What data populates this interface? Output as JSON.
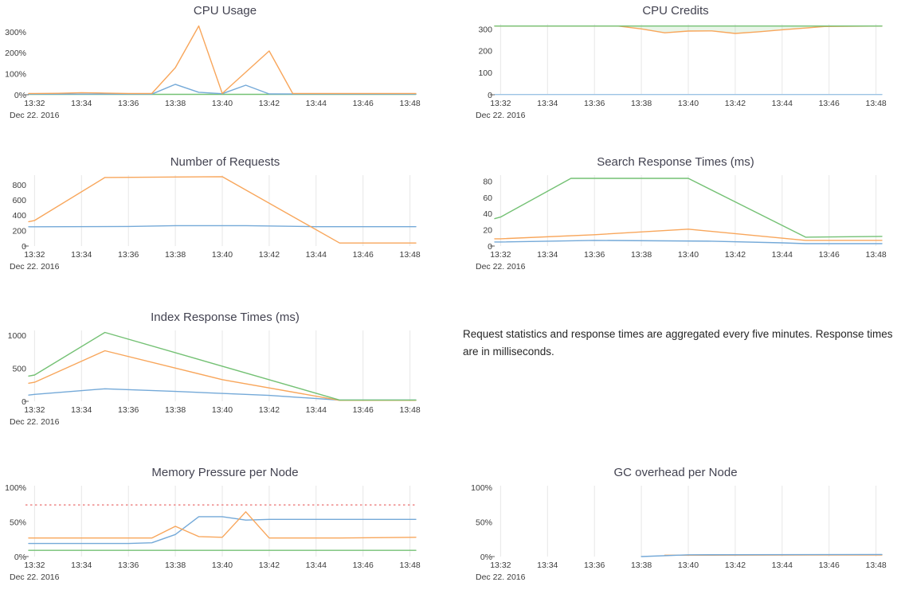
{
  "layout": {
    "background": "#ffffff",
    "grid_color": "#e7e7e7",
    "tick_color": "#3c3c3c",
    "title_color": "#434351",
    "date_label": "Dec 22. 2016",
    "x_ticks": [
      {
        "v": 0,
        "label": "13:32"
      },
      {
        "v": 2,
        "label": "13:34"
      },
      {
        "v": 4,
        "label": "13:36"
      },
      {
        "v": 6,
        "label": "13:38"
      },
      {
        "v": 8,
        "label": "13:40"
      },
      {
        "v": 10,
        "label": "13:42"
      },
      {
        "v": 12,
        "label": "13:44"
      },
      {
        "v": 14,
        "label": "13:46"
      },
      {
        "v": 16,
        "label": "13:48"
      }
    ]
  },
  "note": {
    "text": "Request statistics and response times are aggregated every five minutes. Response times are in milliseconds."
  },
  "chart_data": [
    {
      "type": "line",
      "title": "CPU Usage",
      "ylim": 340,
      "grid": false,
      "y_ticks": [
        {
          "v": 0,
          "label": "0%"
        },
        {
          "v": 100,
          "label": "100%"
        },
        {
          "v": 200,
          "label": "200%"
        },
        {
          "v": 300,
          "label": "300%"
        }
      ],
      "series": [
        {
          "name": "green",
          "color": "#74c174",
          "x": [
            -0.25,
            16.25
          ],
          "y": [
            2,
            2
          ]
        },
        {
          "name": "blue",
          "color": "#74a9d8",
          "x": [
            -0.25,
            5,
            6,
            7,
            8,
            9,
            10,
            16.25
          ],
          "y": [
            3,
            3,
            50,
            12,
            5,
            46,
            4,
            3
          ]
        },
        {
          "name": "orange",
          "color": "#f8a65b",
          "x": [
            -0.25,
            0,
            1,
            2,
            3,
            4,
            5,
            6,
            7,
            8,
            10,
            11,
            16.25
          ],
          "y": [
            6,
            6,
            7,
            10,
            8,
            6,
            6,
            130,
            330,
            6,
            210,
            6,
            6
          ]
        }
      ]
    },
    {
      "type": "line",
      "title": "CPU Credits",
      "ylim": 325,
      "grid": true,
      "y_ticks": [
        {
          "v": 0,
          "label": "0"
        },
        {
          "v": 100,
          "label": "100"
        },
        {
          "v": 200,
          "label": "200"
        },
        {
          "v": 300,
          "label": "300"
        }
      ],
      "series": [
        {
          "name": "orange",
          "color": "#f8a65b",
          "fill_to_y": 315,
          "fill": "rgba(116,193,116,0.16)",
          "x": [
            -0.25,
            5,
            6,
            7,
            8,
            9,
            10,
            11,
            12,
            13,
            13.8,
            16.25
          ],
          "y": [
            315,
            315,
            302,
            284,
            292,
            293,
            281,
            289,
            298,
            306,
            313,
            315
          ]
        },
        {
          "name": "blue",
          "color": "#9cc3e4",
          "x": [
            -0.25,
            16.25
          ],
          "y": [
            1,
            1
          ]
        },
        {
          "name": "green",
          "color": "#74c174",
          "x": [
            -0.25,
            16.25
          ],
          "y": [
            315,
            315
          ]
        }
      ]
    },
    {
      "type": "line",
      "title": "Number of Requests",
      "ylim": 930,
      "grid": true,
      "y_ticks": [
        {
          "v": 0,
          "label": "0"
        },
        {
          "v": 200,
          "label": "200"
        },
        {
          "v": 400,
          "label": "400"
        },
        {
          "v": 600,
          "label": "600"
        },
        {
          "v": 800,
          "label": "800"
        }
      ],
      "series": [
        {
          "name": "blue",
          "color": "#74a9d8",
          "x": [
            -0.25,
            0,
            4,
            6,
            9,
            12,
            16.25
          ],
          "y": [
            253,
            253,
            257,
            267,
            267,
            254,
            254
          ]
        },
        {
          "name": "orange",
          "color": "#f8a65b",
          "x": [
            -0.25,
            0,
            3,
            8,
            13,
            16.25
          ],
          "y": [
            320,
            335,
            900,
            910,
            40,
            40
          ]
        }
      ]
    },
    {
      "type": "line",
      "title": "Search Response Times (ms)",
      "ylim": 88,
      "grid": true,
      "y_ticks": [
        {
          "v": 0,
          "label": "0"
        },
        {
          "v": 20,
          "label": "20"
        },
        {
          "v": 40,
          "label": "40"
        },
        {
          "v": 60,
          "label": "60"
        },
        {
          "v": 80,
          "label": "80"
        }
      ],
      "series": [
        {
          "name": "blue",
          "color": "#74a9d8",
          "x": [
            -0.25,
            0,
            4,
            9,
            12,
            13,
            16.25
          ],
          "y": [
            5,
            5,
            7,
            6,
            4,
            3,
            3
          ]
        },
        {
          "name": "orange",
          "color": "#f8a65b",
          "x": [
            -0.25,
            0,
            4,
            8,
            13,
            16.25
          ],
          "y": [
            9,
            9,
            14,
            21,
            7,
            7
          ]
        },
        {
          "name": "green",
          "color": "#74c174",
          "x": [
            -0.25,
            0,
            3,
            8,
            13,
            16.25
          ],
          "y": [
            34,
            36,
            84,
            84,
            11,
            12
          ]
        }
      ]
    },
    {
      "type": "line",
      "title": "Index Response Times (ms)",
      "ylim": 1080,
      "grid": true,
      "y_ticks": [
        {
          "v": 0,
          "label": "0"
        },
        {
          "v": 500,
          "label": "500"
        },
        {
          "v": 1000,
          "label": "1000"
        }
      ],
      "series": [
        {
          "name": "blue",
          "color": "#74a9d8",
          "x": [
            -0.25,
            0,
            3,
            6,
            10,
            13,
            16.25
          ],
          "y": [
            95,
            105,
            190,
            150,
            90,
            18,
            18
          ]
        },
        {
          "name": "orange",
          "color": "#f8a65b",
          "x": [
            -0.25,
            0,
            3,
            8,
            13,
            16.25
          ],
          "y": [
            275,
            290,
            770,
            330,
            15,
            15
          ]
        },
        {
          "name": "green",
          "color": "#74c174",
          "x": [
            -0.25,
            0,
            3,
            13,
            16.25
          ],
          "y": [
            385,
            400,
            1050,
            20,
            20
          ]
        }
      ]
    },
    {
      "type": "line",
      "title": "Memory Pressure per Node",
      "ylim": 103,
      "grid": true,
      "threshold": {
        "y": 75,
        "color": "#ef8f8f"
      },
      "y_ticks": [
        {
          "v": 0,
          "label": "0%"
        },
        {
          "v": 50,
          "label": "50%"
        },
        {
          "v": 100,
          "label": "100%"
        }
      ],
      "series": [
        {
          "name": "green",
          "color": "#74c174",
          "x": [
            -0.25,
            16.25
          ],
          "y": [
            9,
            9
          ]
        },
        {
          "name": "blue",
          "color": "#74a9d8",
          "x": [
            -0.25,
            0,
            4,
            5,
            6,
            7,
            8,
            9,
            10,
            16.25
          ],
          "y": [
            19,
            19,
            19,
            20,
            32,
            58,
            58,
            53,
            54,
            54
          ]
        },
        {
          "name": "orange",
          "color": "#f8a65b",
          "x": [
            -0.25,
            0,
            5,
            6,
            7,
            8,
            9,
            10,
            13,
            16.25
          ],
          "y": [
            27,
            27,
            27,
            44,
            29,
            28,
            65,
            27,
            27,
            28
          ]
        }
      ]
    },
    {
      "type": "line",
      "title": "GC overhead per Node",
      "ylim": 103,
      "grid": true,
      "y_ticks": [
        {
          "v": 0,
          "label": "0%"
        },
        {
          "v": 50,
          "label": "50%"
        },
        {
          "v": 100,
          "label": "100%"
        }
      ],
      "series": [
        {
          "name": "orange",
          "color": "#f8a65b",
          "x": [
            7,
            16.25
          ],
          "y": [
            2,
            2.3
          ]
        },
        {
          "name": "blue",
          "color": "#74a9d8",
          "x": [
            6,
            8,
            16.25
          ],
          "y": [
            0,
            2.5,
            3
          ]
        }
      ]
    }
  ]
}
